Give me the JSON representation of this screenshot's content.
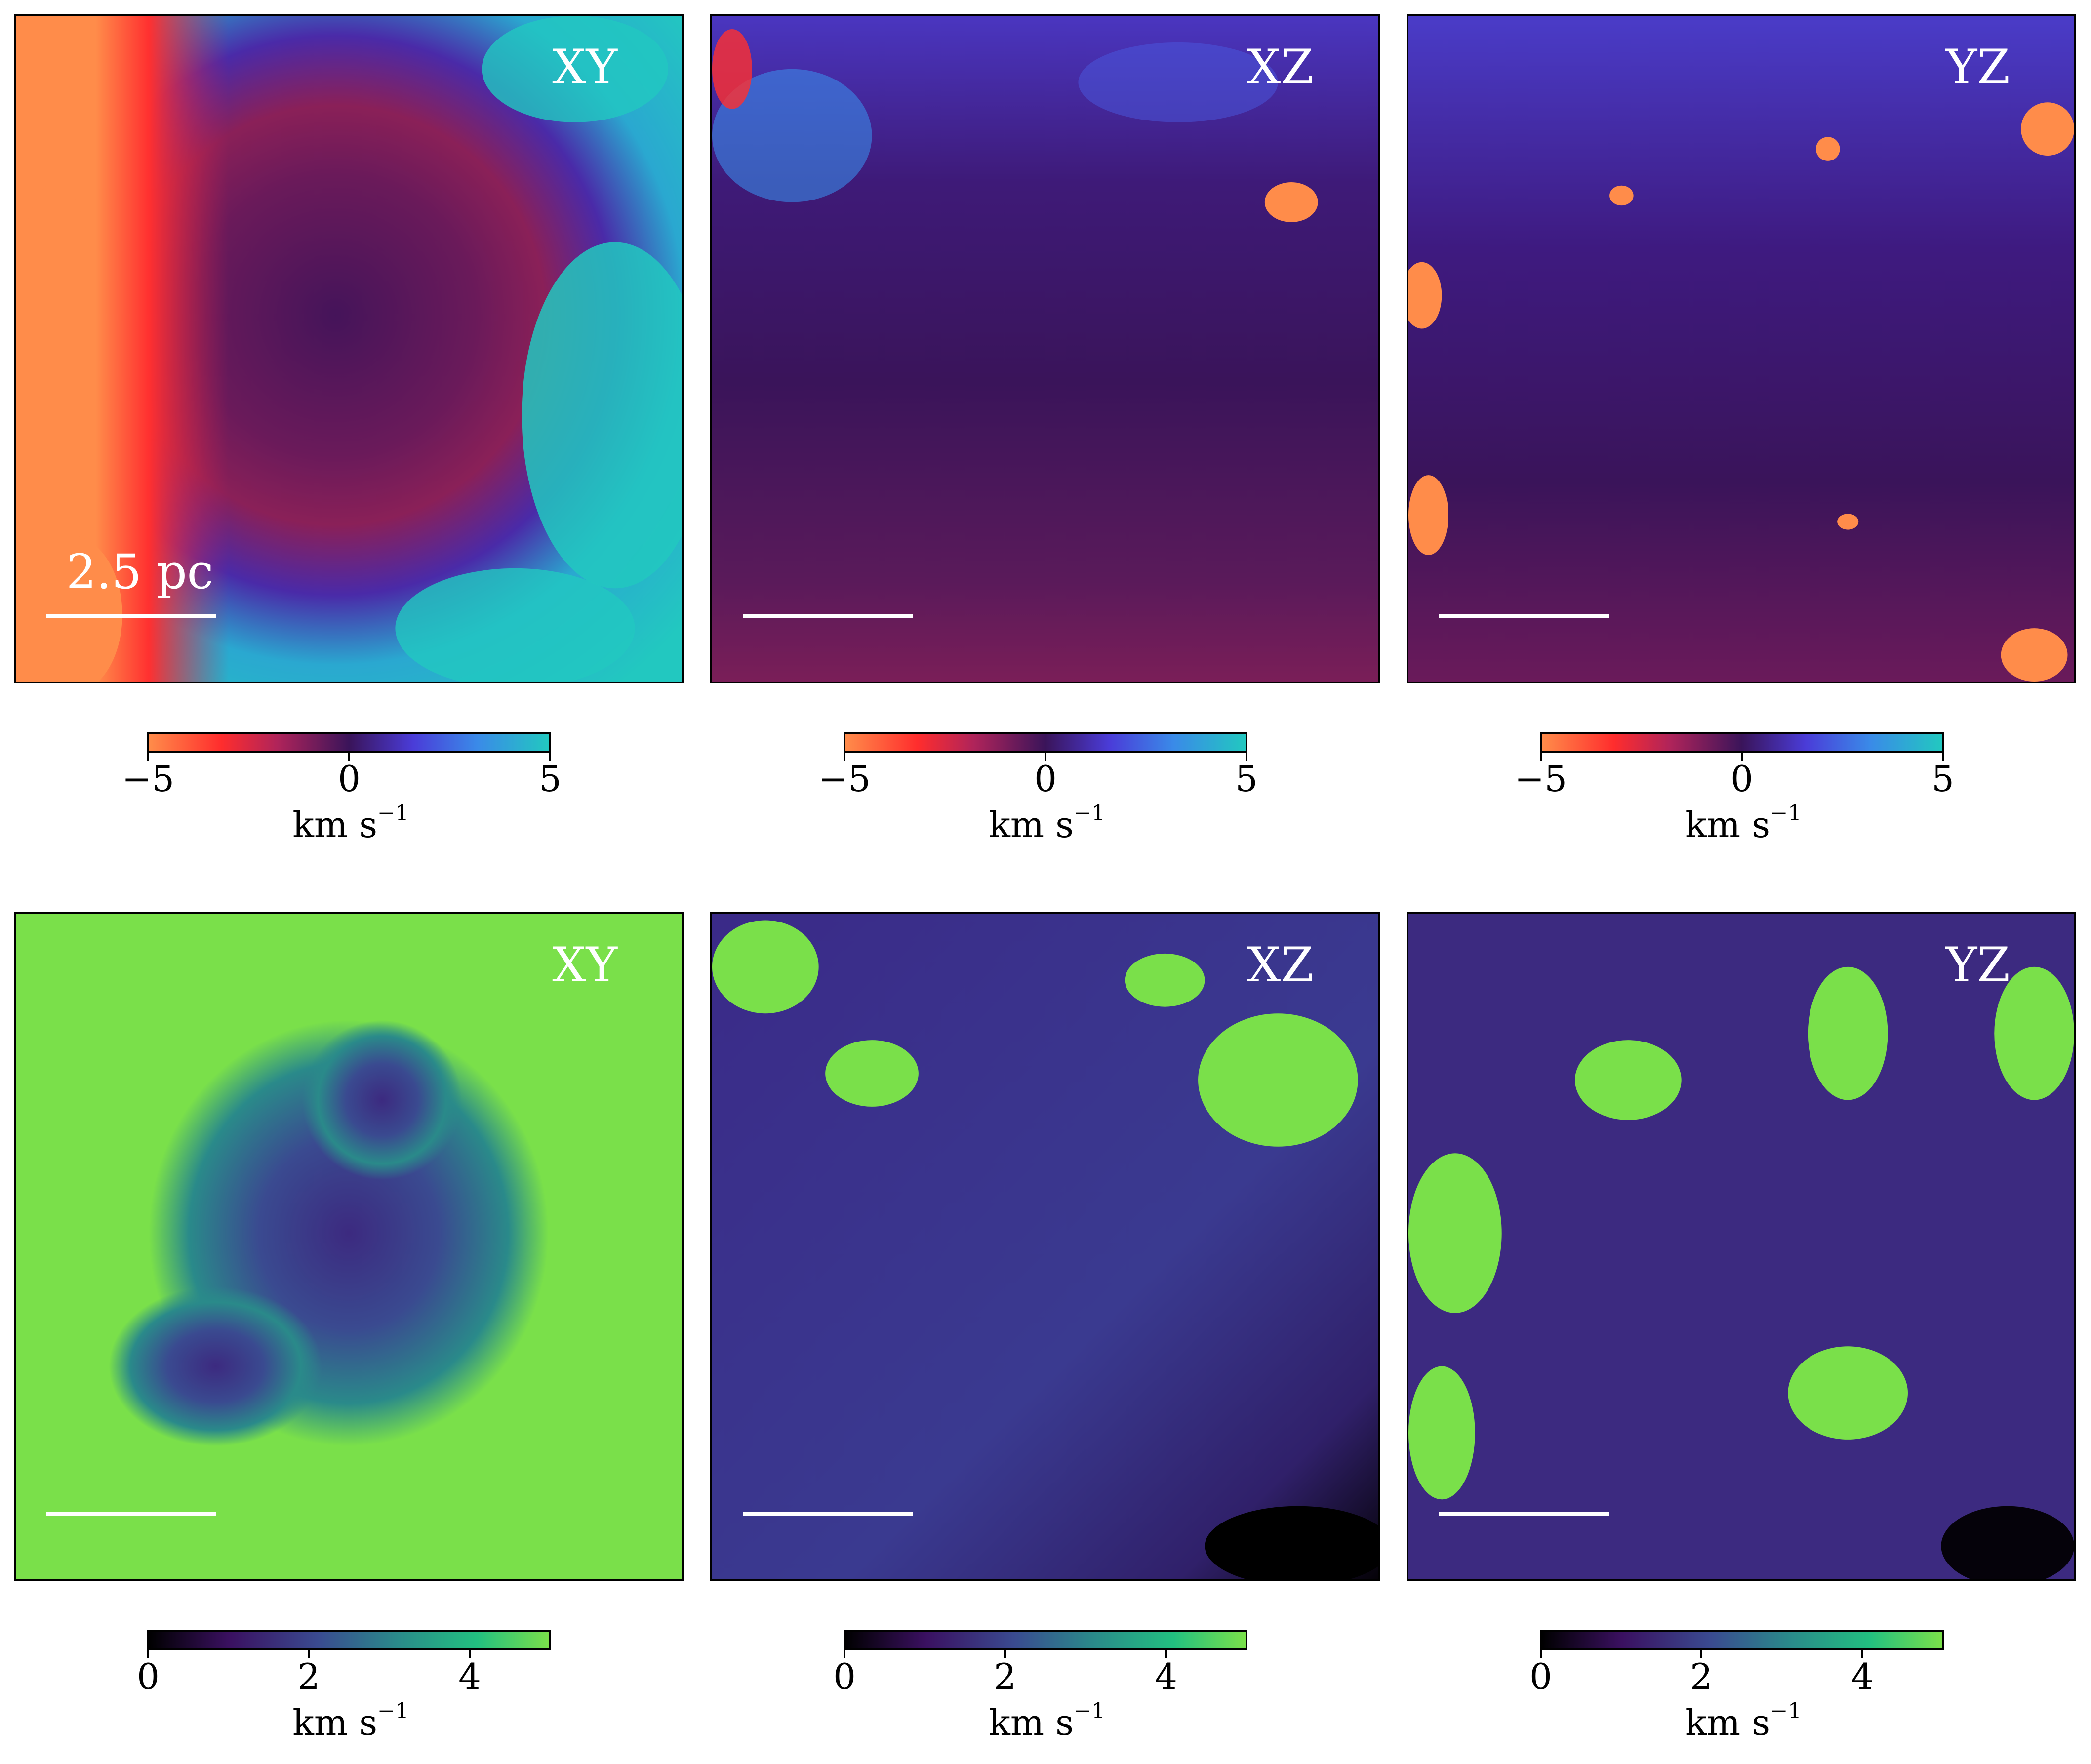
{
  "top_row": {
    "panels": [
      {
        "projection": "XY",
        "scalebar_label": "2.5 pc"
      },
      {
        "projection": "XZ",
        "scalebar_label": ""
      },
      {
        "projection": "YZ",
        "scalebar_label": ""
      }
    ],
    "colorbar": {
      "ticks": [
        "−5",
        "0",
        "5"
      ],
      "unit": "km s",
      "unit_exp": "−1",
      "colormap": "red-purple-cyan",
      "range": [
        -5,
        5
      ]
    }
  },
  "bottom_row": {
    "panels": [
      {
        "projection": "XY"
      },
      {
        "projection": "XZ"
      },
      {
        "projection": "YZ"
      }
    ],
    "colorbar": {
      "ticks": [
        "0",
        "2",
        "4"
      ],
      "unit": "km s",
      "unit_exp": "−1",
      "colormap": "black-purple-green",
      "range": [
        0,
        5
      ]
    }
  },
  "chart_data": {
    "type": "heatmap",
    "description_free": true,
    "rows": [
      {
        "quantity_range": [
          -5,
          5
        ],
        "tick_values": [
          -5,
          0,
          5
        ],
        "projections": [
          "XY",
          "XZ",
          "YZ"
        ]
      },
      {
        "quantity_range": [
          0,
          5
        ],
        "tick_values": [
          0,
          2,
          4
        ],
        "projections": [
          "XY",
          "XZ",
          "YZ"
        ]
      }
    ]
  },
  "colors": {
    "top_gradient": [
      "#ff8c4a",
      "#ff2d2d",
      "#b0245a",
      "#3a145a",
      "#4a3cd8",
      "#3a8ae8",
      "#22c8c0"
    ],
    "bottom_gradient": [
      "#000000",
      "#3a1060",
      "#3a4a90",
      "#2a8a8a",
      "#22c080",
      "#7ae04a"
    ],
    "top_bg": "#3a145a",
    "bottom_bg": "#3c2a80"
  }
}
